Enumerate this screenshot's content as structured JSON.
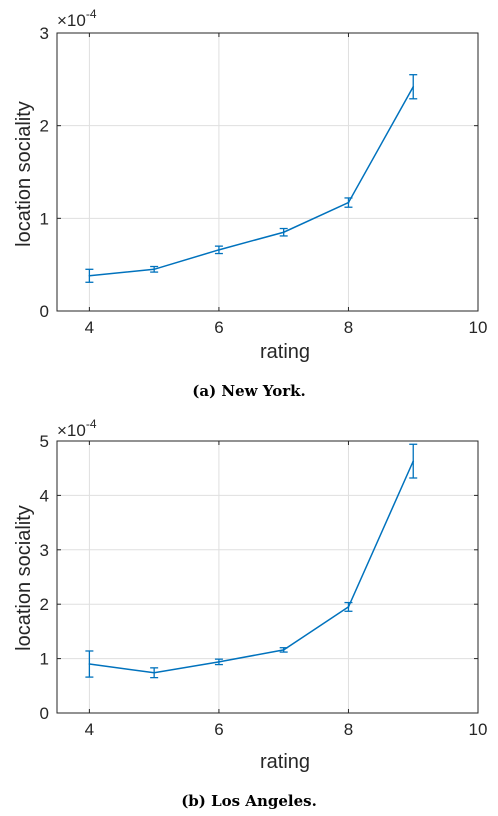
{
  "chart_data": [
    {
      "type": "line",
      "caption": "(a) New York.",
      "xlabel": "rating",
      "ylabel": "location sociality",
      "exponent_label": "×10",
      "exponent_power": "-4",
      "xlim": [
        3.5,
        10
      ],
      "ylim": [
        0,
        3
      ],
      "x_ticks": [
        4,
        6,
        8,
        10
      ],
      "y_ticks": [
        0,
        1,
        2,
        3
      ],
      "grid": true,
      "x": [
        4,
        5,
        6,
        7,
        8,
        9
      ],
      "y": [
        0.38,
        0.45,
        0.66,
        0.85,
        1.17,
        2.42
      ],
      "error": [
        0.07,
        0.03,
        0.04,
        0.04,
        0.05,
        0.13
      ],
      "color": "#0072bd"
    },
    {
      "type": "line",
      "caption": "(b) Los Angeles.",
      "xlabel": "rating",
      "ylabel": "location sociality",
      "exponent_label": "×10",
      "exponent_power": "-4",
      "xlim": [
        3.5,
        10
      ],
      "ylim": [
        0,
        5
      ],
      "x_ticks": [
        4,
        6,
        8,
        10
      ],
      "y_ticks": [
        0,
        1,
        2,
        3,
        4,
        5
      ],
      "grid": true,
      "x": [
        4,
        5,
        6,
        7,
        8,
        9
      ],
      "y": [
        0.9,
        0.74,
        0.94,
        1.16,
        1.95,
        4.63
      ],
      "error": [
        0.24,
        0.09,
        0.05,
        0.04,
        0.08,
        0.31
      ],
      "color": "#0072bd"
    }
  ]
}
